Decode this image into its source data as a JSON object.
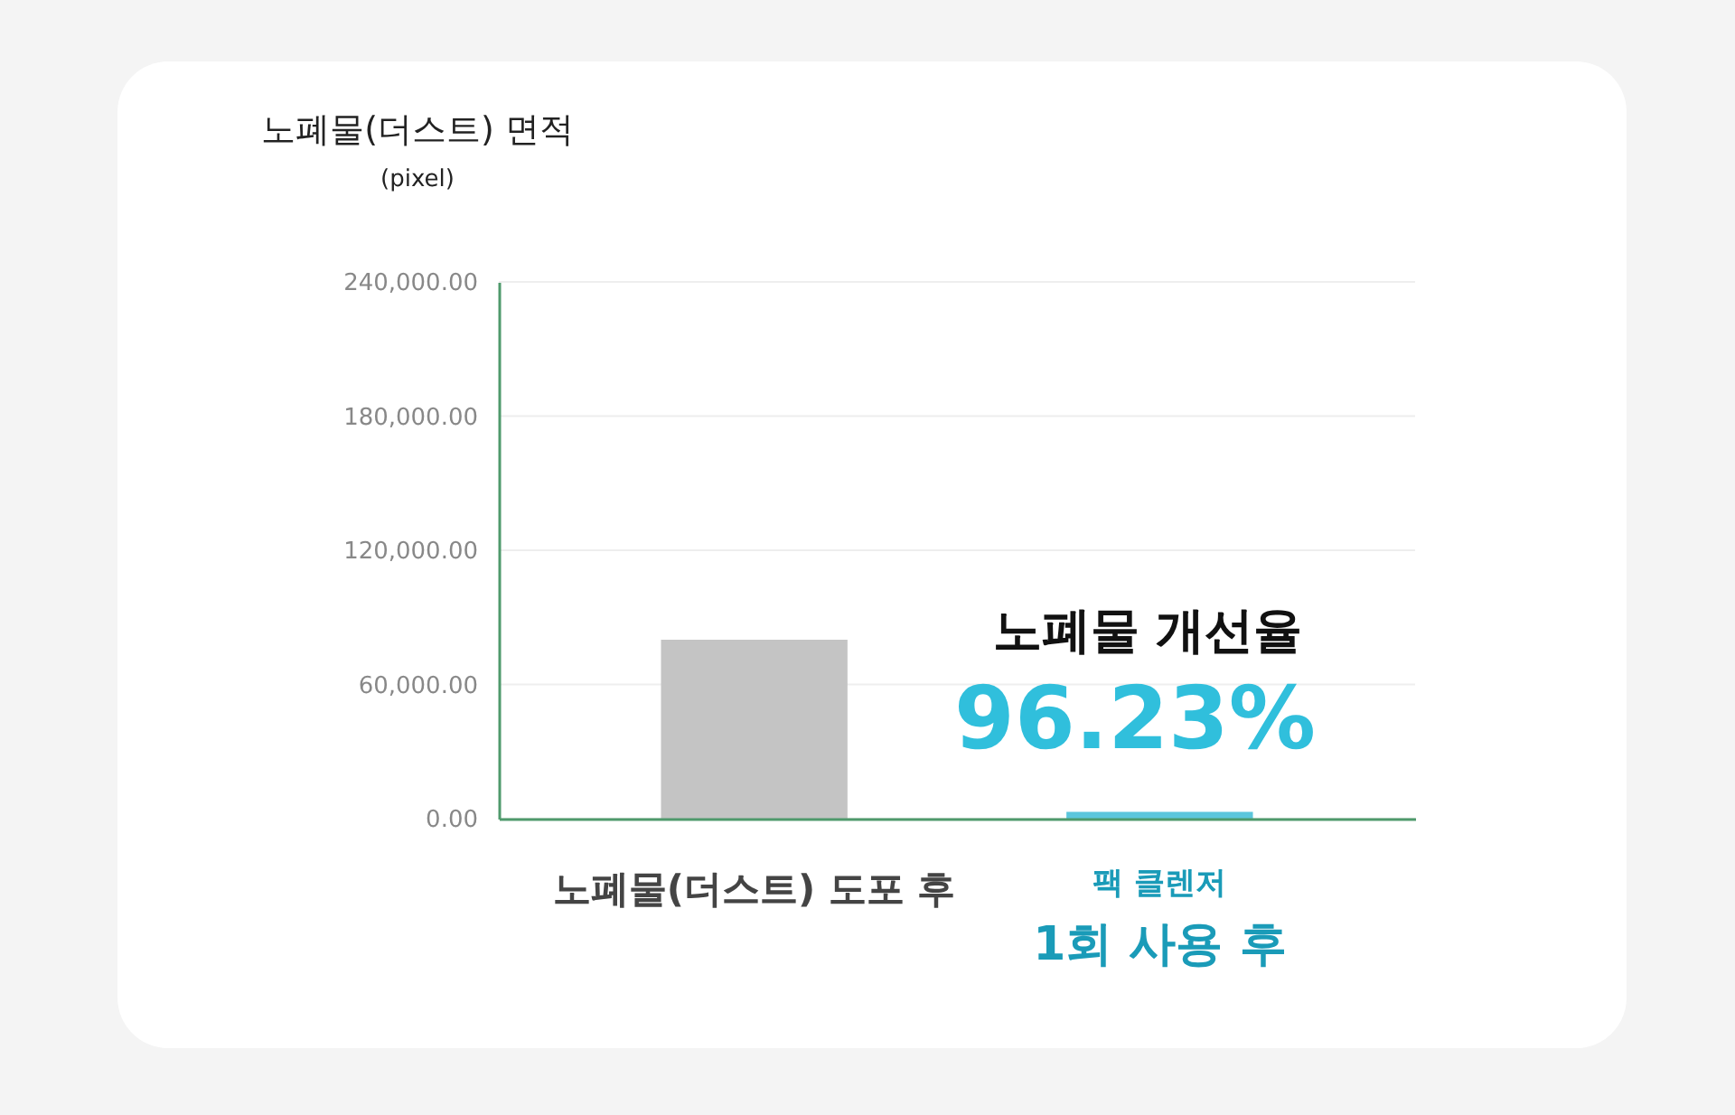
{
  "chart_data": {
    "type": "bar",
    "ylabel": "노폐물(더스트) 면적\n(pixel)",
    "categories": [
      "노폐물(더스트) 도포 후",
      "팩 클렌저\n1회 사용 후"
    ],
    "values": [
      80000,
      3000
    ],
    "colors": [
      "#c4c4c4",
      "#5cc6dc"
    ],
    "ylim": [
      0,
      240000
    ],
    "yticks": [
      {
        "value": 0,
        "label": "0.00"
      },
      {
        "value": 60000,
        "label": "60,000.00"
      },
      {
        "value": 120000,
        "label": "120,000.00"
      },
      {
        "value": 180000,
        "label": "180,000.00"
      },
      {
        "value": 240000,
        "label": "240,000.00"
      }
    ],
    "annotations": [
      "노폐물 개선율",
      "96.23%"
    ],
    "grid": "y"
  }
}
